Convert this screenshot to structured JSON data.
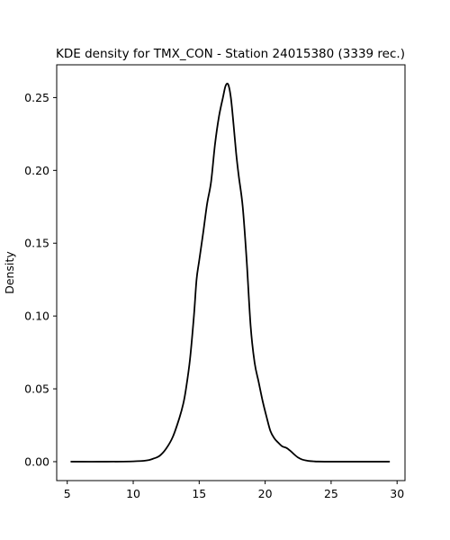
{
  "chart_data": {
    "type": "line",
    "title": "KDE density for TMX_CON - Station 24015380 (3339 rec.)",
    "xlabel": "",
    "ylabel": "Density",
    "xlim": [
      4.2,
      30.6
    ],
    "ylim": [
      -0.013,
      0.2725
    ],
    "xticks": [
      5,
      10,
      15,
      20,
      25,
      30
    ],
    "yticks": [
      0.0,
      0.05,
      0.1,
      0.15,
      0.2,
      0.25
    ],
    "ytick_labels": [
      "0.00",
      "0.05",
      "0.10",
      "0.15",
      "0.20",
      "0.25"
    ],
    "grid": false,
    "legend": "none",
    "line_color": "#000000",
    "series": [
      {
        "x": [
          5.3,
          8.0,
          10.0,
          11.0,
          11.5,
          12.0,
          12.5,
          13.0,
          13.5,
          13.8,
          14.0,
          14.3,
          14.6,
          14.8,
          15.0,
          15.3,
          15.6,
          15.9,
          16.2,
          16.5,
          16.8,
          17.0,
          17.2,
          17.4,
          17.6,
          17.8,
          18.0,
          18.3,
          18.6,
          18.9,
          19.2,
          19.5,
          19.8,
          20.1,
          20.4,
          20.7,
          21.0,
          21.3,
          21.6,
          21.9,
          22.2,
          22.5,
          22.8,
          23.1,
          23.4,
          23.7,
          24.0,
          25.0,
          27.0,
          29.4
        ],
        "y": [
          0.0,
          0.0,
          0.0002,
          0.0008,
          0.002,
          0.004,
          0.009,
          0.017,
          0.03,
          0.04,
          0.05,
          0.07,
          0.1,
          0.125,
          0.138,
          0.157,
          0.177,
          0.192,
          0.218,
          0.237,
          0.25,
          0.258,
          0.259,
          0.25,
          0.232,
          0.212,
          0.196,
          0.175,
          0.138,
          0.093,
          0.068,
          0.055,
          0.042,
          0.031,
          0.021,
          0.016,
          0.013,
          0.0105,
          0.0095,
          0.0075,
          0.005,
          0.0028,
          0.0015,
          0.0008,
          0.0004,
          0.0002,
          0.0001,
          0.0,
          0.0,
          0.0
        ]
      }
    ]
  }
}
